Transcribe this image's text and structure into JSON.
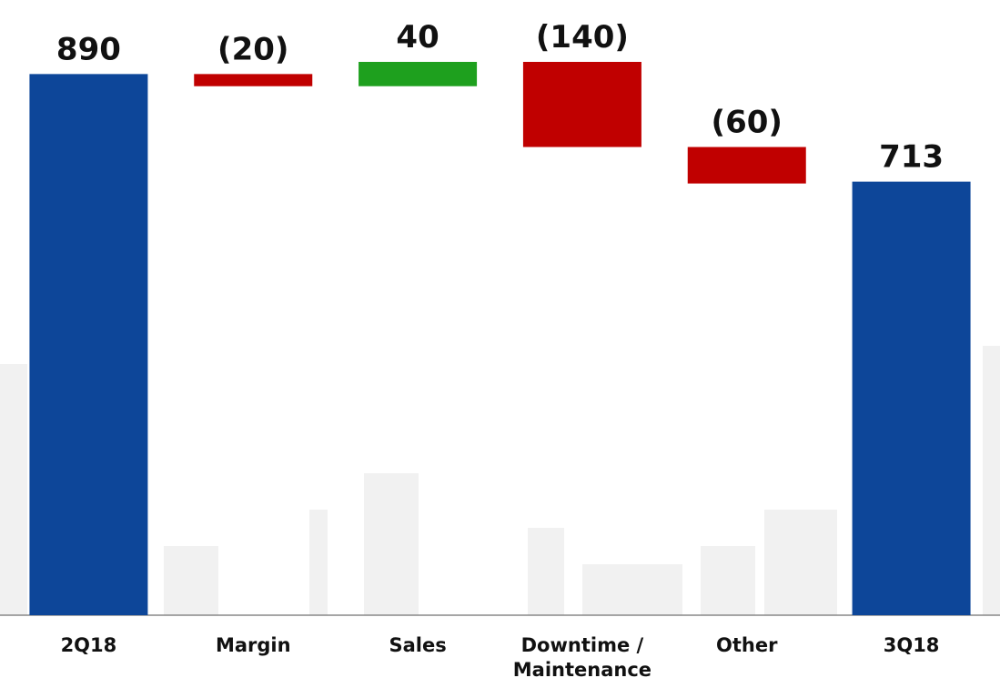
{
  "chart_data": {
    "type": "waterfall",
    "categories": [
      "2Q18",
      "Margin",
      "Sales",
      "Downtime / Maintenance",
      "Other",
      "3Q18"
    ],
    "values": [
      890,
      -20,
      40,
      -140,
      -60,
      713
    ],
    "value_labels": [
      "890",
      "(20)",
      "40",
      "(140)",
      "(60)",
      "713"
    ],
    "colors": [
      "#0d4699",
      "#c00000",
      "#1ea01e",
      "#c00000",
      "#c00000",
      "#0d4699"
    ]
  }
}
